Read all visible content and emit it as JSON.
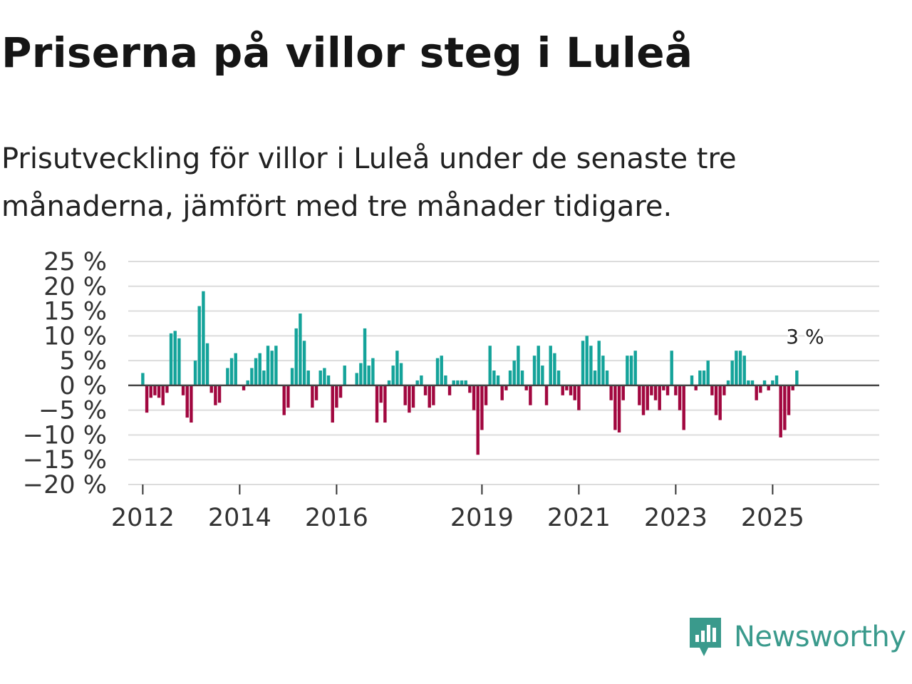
{
  "title": "Priserna på villor steg i Luleå",
  "subtitle": "Prisutveckling för villor i Luleå under de senaste tre månaderna, jämfört med tre månader tidigare.",
  "brand": {
    "name": "Newsworthy",
    "icon": "newsworthy-logo-icon"
  },
  "colors": {
    "positive": "#14a39a",
    "negative": "#a1073f",
    "grid": "#dcdcdc",
    "zero": "#444444"
  },
  "chart_data": {
    "type": "bar",
    "ylabel": "",
    "ylim": [
      -20,
      25
    ],
    "yticks": [
      25,
      20,
      15,
      10,
      5,
      0,
      -5,
      -10,
      -15,
      -20
    ],
    "ytick_labels": [
      "25 %",
      "20 %",
      "15 %",
      "10 %",
      "5 %",
      "0 %",
      "−5 %",
      "−10 %",
      "−15 %",
      "−20 %"
    ],
    "xlim": [
      2011.7,
      2027.2
    ],
    "xticks": [
      2012,
      2014,
      2016,
      2019,
      2021,
      2023,
      2025
    ],
    "xtick_labels": [
      "2012",
      "2014",
      "2016",
      "2019",
      "2021",
      "2023",
      "2025"
    ],
    "annotation": {
      "text": "3 %",
      "x": 2025.67,
      "value": 3
    },
    "start": 2012.0,
    "step": 0.08333,
    "values": [
      2.5,
      -5.5,
      -2.5,
      -2,
      -2.5,
      -4,
      -1.5,
      10.5,
      11,
      9.5,
      -2,
      -6.5,
      -7.5,
      5,
      16,
      19,
      8.5,
      -1.5,
      -4,
      -3.5,
      0,
      3.5,
      5.5,
      6.5,
      0,
      -1,
      1,
      3.5,
      5.5,
      6.5,
      3,
      8,
      7,
      8,
      0,
      -6,
      -4.5,
      3.5,
      11.5,
      14.5,
      9,
      3,
      -4.5,
      -3,
      3,
      3.5,
      2,
      -7.5,
      -4.5,
      -2.5,
      4,
      0,
      0,
      2.5,
      4.5,
      11.5,
      4,
      5.5,
      -7.5,
      -3.5,
      -7.5,
      1,
      4,
      7,
      4.5,
      -4,
      -5.5,
      -4.5,
      1,
      2,
      -2,
      -4.5,
      -4,
      5.5,
      6,
      2,
      -2,
      1,
      1,
      1,
      1,
      -1.5,
      -5,
      -14,
      -9,
      -4,
      8,
      3,
      2,
      -3,
      -1,
      3,
      5,
      8,
      3,
      -1,
      -4,
      6,
      8,
      4,
      -4,
      8,
      6.5,
      3,
      -2,
      -1,
      -2,
      -3,
      -5,
      9,
      10,
      8,
      3,
      9,
      6,
      3,
      -3,
      -9,
      -9.5,
      -3,
      6,
      6,
      7,
      -4,
      -6,
      -5,
      -2,
      -3,
      -5,
      -1,
      -2,
      7,
      -2,
      -5,
      -9,
      0,
      2,
      -1,
      3,
      3,
      5,
      -2,
      -6,
      -7,
      -2,
      1,
      5,
      7,
      7,
      6,
      1,
      1,
      -3,
      -1.5,
      1,
      -1,
      1,
      2,
      -10.5,
      -9,
      -6,
      -1,
      3
    ]
  }
}
